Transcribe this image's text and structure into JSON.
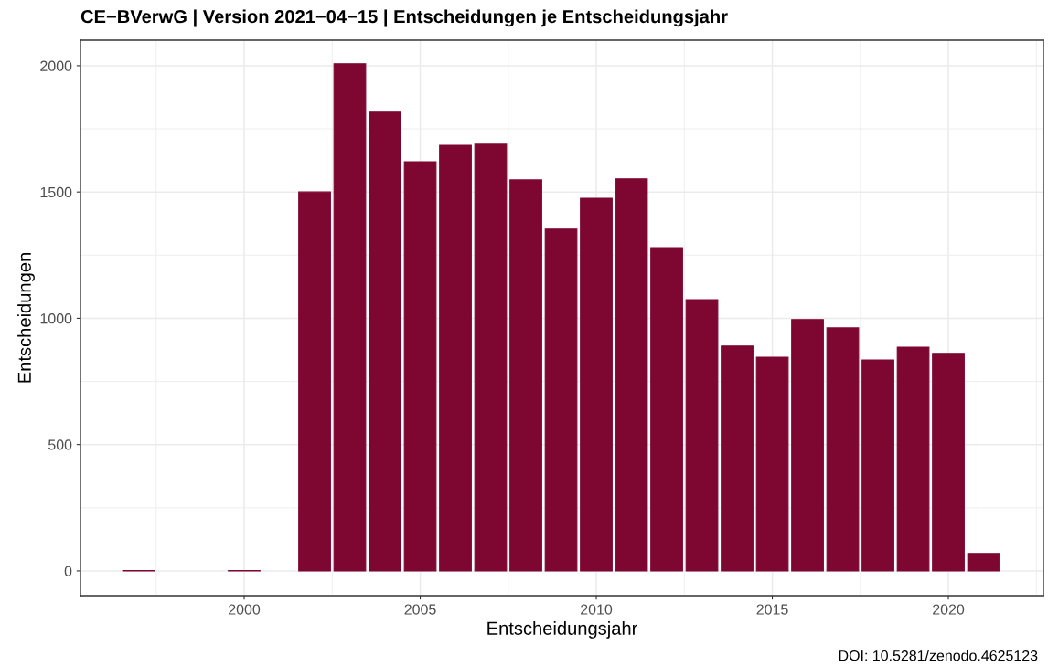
{
  "chart_data": {
    "type": "bar",
    "title": "CE−BVerwG | Version 2021−04−15 | Entscheidungen je Entscheidungsjahr",
    "xlabel": "Entscheidungsjahr",
    "ylabel": "Entscheidungen",
    "x": [
      1997,
      2000,
      2002,
      2003,
      2004,
      2005,
      2006,
      2007,
      2008,
      2009,
      2010,
      2011,
      2012,
      2013,
      2014,
      2015,
      2016,
      2017,
      2018,
      2019,
      2020,
      2021
    ],
    "values": [
      1,
      1,
      1500,
      2008,
      1816,
      1620,
      1685,
      1689,
      1548,
      1353,
      1475,
      1552,
      1280,
      1074,
      890,
      846,
      995,
      962,
      835,
      886,
      861,
      69
    ],
    "color": "#7e0731",
    "xlim": [
      1995.35,
      2022.7
    ],
    "xticks": [
      2000,
      2005,
      2010,
      2015,
      2020
    ],
    "ylim": [
      -98,
      2101
    ],
    "yticks": [
      0,
      500,
      1000,
      1500,
      2000
    ],
    "grid": true,
    "annotations": [
      "DOI: 10.5281/zenodo.4625123"
    ]
  }
}
